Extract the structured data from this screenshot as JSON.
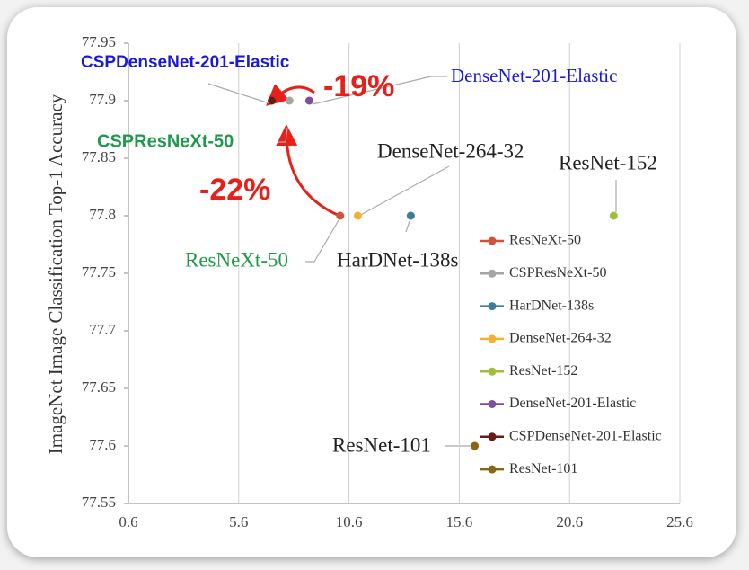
{
  "chart_data": {
    "type": "scatter",
    "y_label": "ImageNet Image Classification Top-1 Accuracy",
    "xlim": [
      0.6,
      25.6
    ],
    "xticks": [
      0.6,
      5.6,
      10.6,
      15.6,
      20.6,
      25.6
    ],
    "ylim": [
      77.55,
      77.95
    ],
    "yticks": [
      77.55,
      77.6,
      77.65,
      77.7,
      77.75,
      77.8,
      77.85,
      77.9,
      77.95
    ],
    "grid": true,
    "legend": "right",
    "series": [
      {
        "name": "ResNeXt-50",
        "color": "#d0533a",
        "x": [
          10.2
        ],
        "values": [
          77.8
        ]
      },
      {
        "name": "CSPResNeXt-50",
        "color": "#a5a5a5",
        "x": [
          7.9
        ],
        "values": [
          77.9
        ]
      },
      {
        "name": "HarDNet-138s",
        "color": "#3d7d96",
        "x": [
          13.4
        ],
        "values": [
          77.8
        ]
      },
      {
        "name": "DenseNet-264-32",
        "color": "#f2b130",
        "x": [
          11.0
        ],
        "values": [
          77.8
        ]
      },
      {
        "name": "ResNet-152",
        "color": "#9fbf3b",
        "x": [
          22.6
        ],
        "values": [
          77.8
        ]
      },
      {
        "name": "DenseNet-201-Elastic",
        "color": "#7e4f9c",
        "x": [
          8.8
        ],
        "values": [
          77.9
        ]
      },
      {
        "name": "CSPDenseNet-201-Elastic",
        "color": "#6b1c12",
        "x": [
          7.1
        ],
        "values": [
          77.9
        ]
      },
      {
        "name": "ResNet-101",
        "color": "#8b6510",
        "x": [
          16.3
        ],
        "values": [
          77.6
        ]
      }
    ],
    "annotations": [
      {
        "text": "CSPDenseNet-201-Elastic",
        "color": "#1a1adc"
      },
      {
        "text": "DenseNet-201-Elastic",
        "color": "#1a1adc"
      },
      {
        "text": "-19%",
        "color": "#e8201a"
      },
      {
        "text": "CSPResNeXt-50",
        "color": "#1f9a4a"
      },
      {
        "text": "-22%",
        "color": "#e8201a"
      },
      {
        "text": "DenseNet-264-32",
        "color": "#222222"
      },
      {
        "text": "ResNet-152",
        "color": "#222222"
      },
      {
        "text": "ResNeXt-50",
        "color": "#1f9a4a"
      },
      {
        "text": "HarDNet-138s",
        "color": "#222222"
      },
      {
        "text": "ResNet-101",
        "color": "#222222"
      }
    ]
  }
}
